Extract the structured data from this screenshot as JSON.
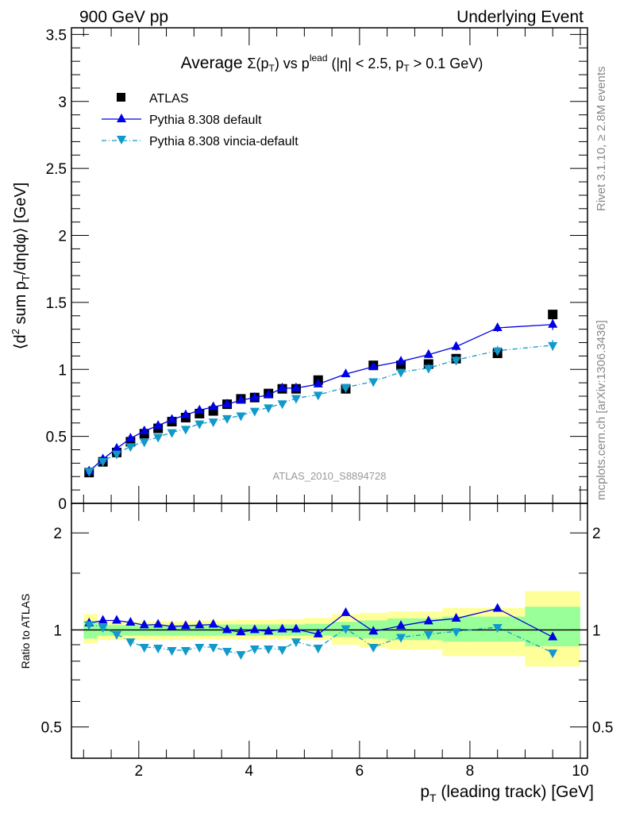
{
  "header": {
    "left": "900 GeV pp",
    "right": "Underlying Event"
  },
  "side_text": {
    "rivet": "Rivet 3.1.10, ≥ 2.8M events",
    "mcplots": "mcplots.cern.ch [arXiv:1306.3436]"
  },
  "watermark": "ATLAS_2010_S8894728",
  "colors": {
    "data": "#000000",
    "default": "#0000e6",
    "vincia": "#1199cc",
    "band_outer": "#ffff99",
    "band_inner": "#99ff99"
  },
  "chart_data": [
    {
      "type": "scatter",
      "title": {
        "prefix": "Average ",
        "sigma": "Σ(p",
        "sub_T": "T",
        "mid": ") vs p",
        "sup": "lead",
        "suffix": " (|η| < 2.5, p",
        "sub_T2": "T",
        "end": " > 0.1 GeV)"
      },
      "ylabel": {
        "a": "⟨d",
        "sup": "2",
        "b": " sum p",
        "sub": "T",
        "c": "/dηdφ⟩ [GeV]"
      },
      "xlim": [
        0.78,
        10.13
      ],
      "ylim": [
        0,
        3.55
      ],
      "yticks": [
        0,
        0.5,
        1,
        1.5,
        2,
        2.5,
        3,
        3.5
      ],
      "ytick_labels": [
        "0",
        "0.5",
        "1",
        "1.5",
        "2",
        "2.5",
        "3",
        "3.5"
      ],
      "legend": {
        "placement": "top-left",
        "entries": [
          "ATLAS",
          "Pythia 8.308 default",
          "Pythia 8.308 vincia-default"
        ]
      },
      "x": [
        1.1,
        1.35,
        1.6,
        1.85,
        2.1,
        2.35,
        2.6,
        2.85,
        3.1,
        3.35,
        3.6,
        3.85,
        4.1,
        4.35,
        4.6,
        4.85,
        5.25,
        5.75,
        6.25,
        6.75,
        7.25,
        7.75,
        8.5,
        9.5
      ],
      "series": [
        {
          "name": "ATLAS",
          "values": [
            0.23,
            0.31,
            0.38,
            0.46,
            0.52,
            0.56,
            0.61,
            0.64,
            0.67,
            0.69,
            0.74,
            0.78,
            0.79,
            0.82,
            0.855,
            0.855,
            0.92,
            0.855,
            1.03,
            1.03,
            1.04,
            1.08,
            1.12,
            1.41
          ]
        },
        {
          "name": "Pythia 8.308 default",
          "values": [
            0.24,
            0.33,
            0.41,
            0.485,
            0.54,
            0.58,
            0.625,
            0.66,
            0.695,
            0.72,
            0.74,
            0.77,
            0.79,
            0.81,
            0.86,
            0.86,
            0.89,
            0.965,
            1.02,
            1.06,
            1.11,
            1.17,
            1.31,
            1.335
          ],
          "errors": [
            0.005,
            0.005,
            0.005,
            0.005,
            0.005,
            0.005,
            0.005,
            0.005,
            0.005,
            0.006,
            0.006,
            0.006,
            0.007,
            0.007,
            0.008,
            0.008,
            0.01,
            0.012,
            0.015,
            0.02,
            0.025,
            0.03,
            0.03,
            0.04
          ]
        },
        {
          "name": "Pythia 8.308 vincia-default",
          "values": [
            0.24,
            0.315,
            0.37,
            0.425,
            0.46,
            0.495,
            0.53,
            0.555,
            0.595,
            0.61,
            0.635,
            0.655,
            0.69,
            0.715,
            0.745,
            0.785,
            0.81,
            0.865,
            0.91,
            0.98,
            1.01,
            1.07,
            1.14,
            1.18
          ],
          "errors": [
            0.005,
            0.005,
            0.005,
            0.005,
            0.005,
            0.005,
            0.005,
            0.005,
            0.005,
            0.006,
            0.006,
            0.006,
            0.007,
            0.007,
            0.008,
            0.008,
            0.01,
            0.012,
            0.015,
            0.025,
            0.03,
            0.03,
            0.035,
            0.04
          ]
        }
      ]
    },
    {
      "type": "scatter",
      "ylabel": "Ratio to ATLAS",
      "xlabel": {
        "a": "p",
        "sub": "T",
        "b": " (leading track) [GeV]"
      },
      "xlim": [
        0.78,
        10.13
      ],
      "ylim": [
        0.4,
        2.47
      ],
      "yscale": "log",
      "yticks": [
        0.5,
        1,
        2
      ],
      "ytick_labels": [
        "0.5",
        "1",
        "2"
      ],
      "xticks": [
        2,
        4,
        6,
        8,
        10
      ],
      "xtick_labels": [
        "2",
        "4",
        "6",
        "8",
        "10"
      ],
      "x": [
        1.1,
        1.35,
        1.6,
        1.85,
        2.1,
        2.35,
        2.6,
        2.85,
        3.1,
        3.35,
        3.6,
        3.85,
        4.1,
        4.35,
        4.6,
        4.85,
        5.25,
        5.75,
        6.25,
        6.75,
        7.25,
        7.75,
        8.5,
        9.5
      ],
      "series": [
        {
          "name": "Pythia 8.308 default",
          "values": [
            1.05,
            1.07,
            1.07,
            1.055,
            1.035,
            1.04,
            1.025,
            1.03,
            1.035,
            1.04,
            1.0,
            0.985,
            1.0,
            0.99,
            1.005,
            1.005,
            0.97,
            1.13,
            0.99,
            1.03,
            1.065,
            1.085,
            1.165,
            0.95
          ]
        },
        {
          "name": "Pythia 8.308 vincia-default",
          "values": [
            1.04,
            1.02,
            0.97,
            0.92,
            0.885,
            0.88,
            0.865,
            0.865,
            0.885,
            0.885,
            0.86,
            0.84,
            0.875,
            0.875,
            0.87,
            0.92,
            0.88,
            1.01,
            0.885,
            0.95,
            0.97,
            0.99,
            1.02,
            0.85
          ]
        }
      ],
      "bands": {
        "edges": [
          1.0,
          1.25,
          1.5,
          1.75,
          2.0,
          2.25,
          2.5,
          2.75,
          3.0,
          3.25,
          3.5,
          3.75,
          4.0,
          4.25,
          4.5,
          4.75,
          5.0,
          5.5,
          6.0,
          6.5,
          7.0,
          7.5,
          8.0,
          9.0,
          10.0
        ],
        "outer": [
          [
            0.91,
            1.12
          ],
          [
            0.93,
            1.06
          ],
          [
            0.93,
            1.06
          ],
          [
            0.93,
            1.06
          ],
          [
            0.93,
            1.06
          ],
          [
            0.93,
            1.065
          ],
          [
            0.93,
            1.065
          ],
          [
            0.93,
            1.065
          ],
          [
            0.935,
            1.07
          ],
          [
            0.935,
            1.07
          ],
          [
            0.935,
            1.07
          ],
          [
            0.935,
            1.075
          ],
          [
            0.935,
            1.075
          ],
          [
            0.935,
            1.075
          ],
          [
            0.935,
            1.08
          ],
          [
            0.935,
            1.08
          ],
          [
            0.93,
            1.09
          ],
          [
            0.9,
            1.12
          ],
          [
            0.88,
            1.13
          ],
          [
            0.87,
            1.14
          ],
          [
            0.87,
            1.14
          ],
          [
            0.83,
            1.17
          ],
          [
            0.83,
            1.17
          ],
          [
            0.77,
            1.32
          ]
        ],
        "inner": [
          [
            0.94,
            1.065
          ],
          [
            0.96,
            1.035
          ],
          [
            0.96,
            1.035
          ],
          [
            0.96,
            1.035
          ],
          [
            0.96,
            1.035
          ],
          [
            0.96,
            1.035
          ],
          [
            0.96,
            1.035
          ],
          [
            0.96,
            1.035
          ],
          [
            0.96,
            1.04
          ],
          [
            0.96,
            1.04
          ],
          [
            0.96,
            1.04
          ],
          [
            0.96,
            1.04
          ],
          [
            0.96,
            1.04
          ],
          [
            0.96,
            1.04
          ],
          [
            0.96,
            1.04
          ],
          [
            0.96,
            1.04
          ],
          [
            0.96,
            1.045
          ],
          [
            0.95,
            1.06
          ],
          [
            0.94,
            1.07
          ],
          [
            0.93,
            1.085
          ],
          [
            0.93,
            1.085
          ],
          [
            0.92,
            1.1
          ],
          [
            0.92,
            1.1
          ],
          [
            0.89,
            1.18
          ]
        ]
      }
    }
  ]
}
